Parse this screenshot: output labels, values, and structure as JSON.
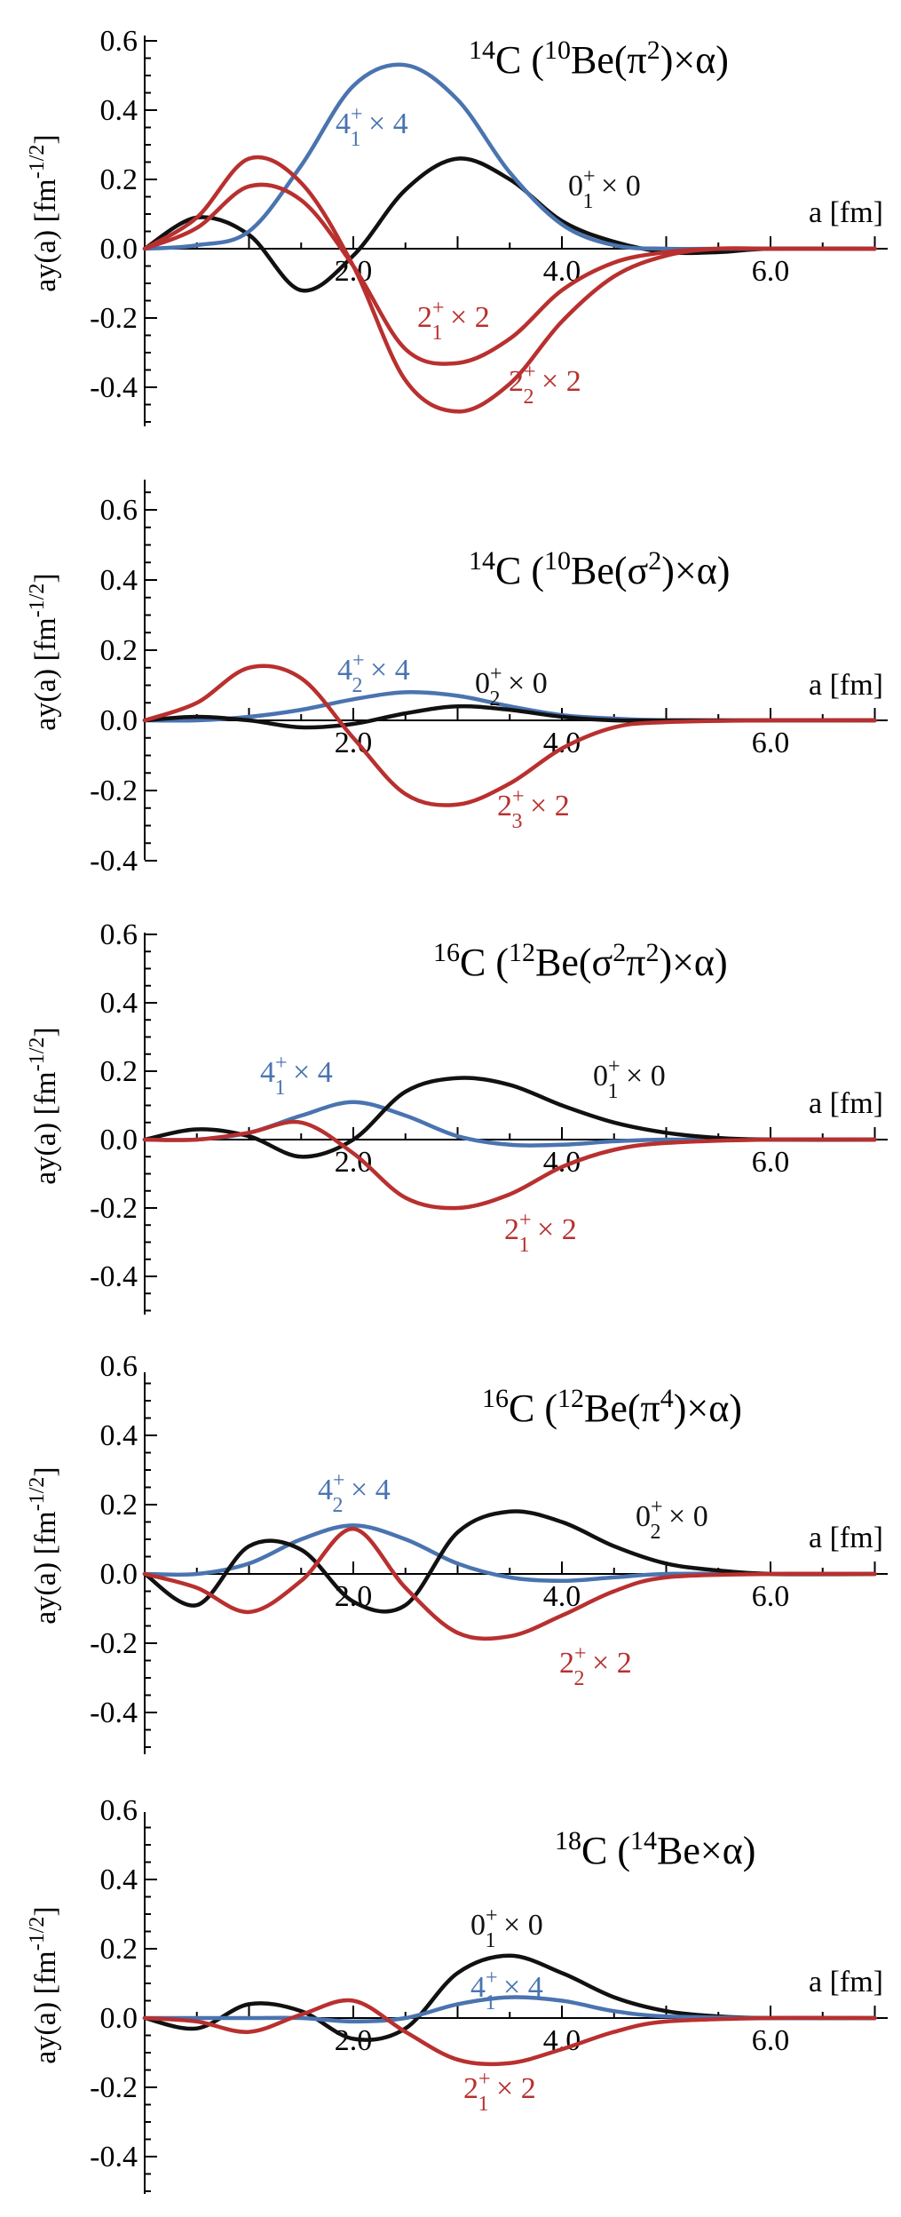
{
  "colors": {
    "black": "#111111",
    "blue": "#4a74b0",
    "red": "#b8302f"
  },
  "chart_data": [
    {
      "type": "line",
      "title": "¹⁴C (¹⁰Be(π²)×α)",
      "title_parts": [
        [
          "",
          "14"
        ],
        [
          "C (",
          ""
        ],
        [
          "",
          "10"
        ],
        [
          "Be(π",
          ""
        ],
        [
          "",
          "2"
        ],
        [
          ")×α)",
          ""
        ]
      ],
      "xlabel": "a [fm]",
      "ylabel": "ay(a) [fm⁻¹ᐟ²]",
      "xlim": [
        0,
        7.0
      ],
      "ylim": [
        -0.5,
        0.6
      ],
      "yticks": [
        "0.6",
        "0.4",
        "0.2",
        "0.0",
        "-0.2",
        "-0.4"
      ],
      "xticks": [
        "2.0",
        "4.0",
        "6.0"
      ],
      "series": [
        {
          "name": "0₁⁺ × 0",
          "color": "black",
          "x": [
            0,
            0.5,
            1.0,
            1.5,
            2.0,
            2.5,
            3.0,
            3.5,
            4.0,
            4.5,
            5.0,
            5.5,
            6.0,
            7.0
          ],
          "y": [
            0.0,
            0.09,
            0.04,
            -0.12,
            -0.02,
            0.17,
            0.26,
            0.2,
            0.08,
            0.02,
            -0.01,
            -0.01,
            0.0,
            0.0
          ]
        },
        {
          "name": "4₁⁺ × 4",
          "color": "blue",
          "x": [
            0,
            0.5,
            1.0,
            1.5,
            2.0,
            2.5,
            3.0,
            3.5,
            4.0,
            4.5,
            5.0,
            5.5,
            6.0,
            7.0
          ],
          "y": [
            0.0,
            0.01,
            0.05,
            0.24,
            0.47,
            0.53,
            0.43,
            0.22,
            0.07,
            0.01,
            0.0,
            0.0,
            0.0,
            0.0
          ]
        },
        {
          "name": "2₁⁺ × 2",
          "color": "red",
          "x": [
            0,
            0.5,
            1.0,
            1.5,
            2.0,
            2.5,
            3.0,
            3.5,
            4.0,
            4.5,
            5.0,
            5.5,
            6.0,
            7.0
          ],
          "y": [
            0.0,
            0.06,
            0.18,
            0.14,
            -0.05,
            -0.29,
            -0.33,
            -0.26,
            -0.12,
            -0.04,
            -0.01,
            0.0,
            0.0,
            0.0
          ]
        },
        {
          "name": "2₂⁺ × 2",
          "color": "red",
          "x": [
            0,
            0.5,
            1.0,
            1.5,
            2.0,
            2.5,
            3.0,
            3.5,
            4.0,
            4.5,
            5.0,
            5.5,
            6.0,
            7.0
          ],
          "y": [
            0.0,
            0.09,
            0.26,
            0.19,
            -0.05,
            -0.38,
            -0.47,
            -0.39,
            -0.21,
            -0.08,
            -0.02,
            0.0,
            0.0,
            0.0
          ]
        }
      ],
      "labels": [
        {
          "base": "4",
          "sub": "1",
          "sup": "+",
          "tail": " × 4",
          "color": "blue"
        },
        {
          "base": "0",
          "sub": "1",
          "sup": "+",
          "tail": " × 0",
          "color": "black"
        },
        {
          "base": "2",
          "sub": "1",
          "sup": "+",
          "tail": " × 2",
          "color": "red"
        },
        {
          "base": "2",
          "sub": "2",
          "sup": "+",
          "tail": " × 2",
          "color": "red"
        }
      ]
    },
    {
      "type": "line",
      "title": "¹⁴C (¹⁰Be(σ²)×α)",
      "title_parts": [
        [
          "",
          "14"
        ],
        [
          "C (",
          ""
        ],
        [
          "",
          "10"
        ],
        [
          "Be(σ",
          ""
        ],
        [
          "",
          "2"
        ],
        [
          ")×α)",
          ""
        ]
      ],
      "xlabel": "a [fm]",
      "ylabel": "ay(a) [fm⁻¹ᐟ²]",
      "xlim": [
        0,
        7.0
      ],
      "ylim": [
        -0.4,
        0.75
      ],
      "yticks": [
        "0.6",
        "0.4",
        "0.2",
        "0.0",
        "-0.2",
        "-0.4"
      ],
      "xticks": [
        "2.0",
        "4.0",
        "6.0"
      ],
      "series": [
        {
          "name": "4₂⁺ × 4",
          "color": "blue",
          "x": [
            0,
            0.5,
            1.0,
            1.5,
            2.0,
            2.5,
            3.0,
            3.5,
            4.0,
            4.5,
            5.0,
            6.0,
            7.0
          ],
          "y": [
            0.0,
            0.0,
            0.01,
            0.03,
            0.06,
            0.08,
            0.07,
            0.04,
            0.015,
            0.005,
            0.0,
            0.0,
            0.0
          ]
        },
        {
          "name": "0₂⁺ × 0",
          "color": "black",
          "x": [
            0,
            0.5,
            1.0,
            1.5,
            2.0,
            2.5,
            3.0,
            3.5,
            4.0,
            4.5,
            5.0,
            6.0,
            7.0
          ],
          "y": [
            0.0,
            0.01,
            0.0,
            -0.02,
            -0.01,
            0.02,
            0.04,
            0.03,
            0.01,
            0.0,
            0.0,
            0.0,
            0.0
          ]
        },
        {
          "name": "2₃⁺ × 2",
          "color": "red",
          "x": [
            0,
            0.5,
            1.0,
            1.5,
            2.0,
            2.5,
            3.0,
            3.5,
            4.0,
            4.5,
            5.0,
            6.0,
            7.0
          ],
          "y": [
            0.0,
            0.05,
            0.15,
            0.12,
            -0.05,
            -0.21,
            -0.24,
            -0.18,
            -0.08,
            -0.02,
            -0.005,
            0.0,
            0.0
          ]
        }
      ],
      "labels": [
        {
          "base": "4",
          "sub": "2",
          "sup": "+",
          "tail": " × 4",
          "color": "blue"
        },
        {
          "base": "0",
          "sub": "2",
          "sup": "+",
          "tail": " × 0",
          "color": "black"
        },
        {
          "base": "2",
          "sub": "3",
          "sup": "+",
          "tail": " × 2",
          "color": "red"
        }
      ]
    },
    {
      "type": "line",
      "title": "¹⁶C (¹²Be(σ²π²)×α)",
      "title_parts": [
        [
          "",
          "16"
        ],
        [
          "C (",
          ""
        ],
        [
          "",
          "12"
        ],
        [
          "Be(σ",
          ""
        ],
        [
          "",
          "2"
        ],
        [
          "π",
          ""
        ],
        [
          "",
          "2"
        ],
        [
          ")×α)",
          ""
        ]
      ],
      "xlabel": "a [fm]",
      "ylabel": "ay(a) [fm⁻¹ᐟ²]",
      "xlim": [
        0,
        7.0
      ],
      "ylim": [
        -0.5,
        0.6
      ],
      "yticks": [
        "0.6",
        "0.4",
        "0.2",
        "0.0",
        "-0.2",
        "-0.4"
      ],
      "xticks": [
        "2.0",
        "4.0",
        "6.0"
      ],
      "series": [
        {
          "name": "4₁⁺ × 4",
          "color": "blue",
          "x": [
            0,
            0.5,
            1.0,
            1.5,
            2.0,
            2.5,
            3.0,
            3.5,
            4.0,
            4.5,
            5.0,
            6.0,
            7.0
          ],
          "y": [
            0.0,
            0.0,
            0.02,
            0.07,
            0.11,
            0.07,
            0.01,
            -0.015,
            -0.015,
            -0.005,
            0.0,
            0.0,
            0.0
          ]
        },
        {
          "name": "0₁⁺ × 0",
          "color": "black",
          "x": [
            0,
            0.5,
            1.0,
            1.5,
            2.0,
            2.5,
            3.0,
            3.5,
            4.0,
            4.5,
            5.0,
            5.5,
            6.0,
            7.0
          ],
          "y": [
            0.0,
            0.03,
            0.01,
            -0.05,
            0.0,
            0.14,
            0.18,
            0.16,
            0.1,
            0.05,
            0.02,
            0.005,
            0.0,
            0.0
          ]
        },
        {
          "name": "2₁⁺ × 2",
          "color": "red",
          "x": [
            0,
            0.5,
            1.0,
            1.5,
            2.0,
            2.5,
            3.0,
            3.5,
            4.0,
            4.5,
            5.0,
            6.0,
            7.0
          ],
          "y": [
            0.0,
            0.0,
            0.02,
            0.05,
            -0.04,
            -0.17,
            -0.2,
            -0.16,
            -0.08,
            -0.03,
            -0.01,
            0.0,
            0.0
          ]
        }
      ],
      "labels": [
        {
          "base": "4",
          "sub": "1",
          "sup": "+",
          "tail": " × 4",
          "color": "blue"
        },
        {
          "base": "0",
          "sub": "1",
          "sup": "+",
          "tail": " × 0",
          "color": "black"
        },
        {
          "base": "2",
          "sub": "1",
          "sup": "+",
          "tail": " × 2",
          "color": "red"
        }
      ]
    },
    {
      "type": "line",
      "title": "¹⁶C (¹²Be(π⁴)×α)",
      "title_parts": [
        [
          "",
          "16"
        ],
        [
          "C (",
          ""
        ],
        [
          "",
          "12"
        ],
        [
          "Be(π",
          ""
        ],
        [
          "",
          "4"
        ],
        [
          ")×α)",
          ""
        ]
      ],
      "xlabel": "a [fm]",
      "ylabel": "ay(a) [fm⁻¹ᐟ²]",
      "xlim": [
        0,
        7.0
      ],
      "ylim": [
        -0.5,
        0.6
      ],
      "yticks": [
        "0.6",
        "0.4",
        "0.2",
        "0.0",
        "-0.2",
        "-0.4"
      ],
      "xticks": [
        "2.0",
        "4.0",
        "6.0"
      ],
      "series": [
        {
          "name": "4₂⁺ × 4",
          "color": "blue",
          "x": [
            0,
            0.5,
            1.0,
            1.5,
            2.0,
            2.5,
            3.0,
            3.5,
            4.0,
            4.5,
            5.0,
            6.0,
            7.0
          ],
          "y": [
            0.0,
            0.0,
            0.03,
            0.1,
            0.14,
            0.1,
            0.03,
            -0.01,
            -0.02,
            -0.01,
            0.0,
            0.0,
            0.0
          ]
        },
        {
          "name": "0₂⁺ × 0",
          "color": "black",
          "x": [
            0,
            0.5,
            1.0,
            1.5,
            2.0,
            2.5,
            3.0,
            3.5,
            4.0,
            4.5,
            5.0,
            5.5,
            6.0,
            7.0
          ],
          "y": [
            0.0,
            -0.09,
            0.08,
            0.07,
            -0.08,
            -0.09,
            0.12,
            0.18,
            0.15,
            0.08,
            0.03,
            0.01,
            0.0,
            0.0
          ]
        },
        {
          "name": "2₂⁺ × 2",
          "color": "red",
          "x": [
            0,
            0.5,
            1.0,
            1.5,
            2.0,
            2.5,
            3.0,
            3.5,
            4.0,
            4.5,
            5.0,
            6.0,
            7.0
          ],
          "y": [
            0.0,
            -0.04,
            -0.11,
            -0.02,
            0.13,
            -0.04,
            -0.17,
            -0.18,
            -0.12,
            -0.05,
            -0.01,
            0.0,
            0.0
          ]
        }
      ],
      "labels": [
        {
          "base": "4",
          "sub": "2",
          "sup": "+",
          "tail": " × 4",
          "color": "blue"
        },
        {
          "base": "0",
          "sub": "2",
          "sup": "+",
          "tail": " × 0",
          "color": "black"
        },
        {
          "base": "2",
          "sub": "2",
          "sup": "+",
          "tail": " × 2",
          "color": "red"
        }
      ]
    },
    {
      "type": "line",
      "title": "¹⁸C (¹⁴Be×α)",
      "title_parts": [
        [
          "",
          "18"
        ],
        [
          "C (",
          ""
        ],
        [
          "",
          "14"
        ],
        [
          "Be×α)",
          ""
        ]
      ],
      "xlabel": "a [fm]",
      "ylabel": "ay(a) [fm⁻¹ᐟ²]",
      "xlim": [
        0,
        7.0
      ],
      "ylim": [
        -0.5,
        0.6
      ],
      "yticks": [
        "0.6",
        "0.4",
        "0.2",
        "0.0",
        "-0.2",
        "-0.4"
      ],
      "xticks": [
        "2.0",
        "4.0",
        "6.0"
      ],
      "series": [
        {
          "name": "0₁⁺ × 0",
          "color": "black",
          "x": [
            0,
            0.5,
            1.0,
            1.5,
            2.0,
            2.5,
            3.0,
            3.5,
            4.0,
            4.5,
            5.0,
            5.5,
            6.0,
            7.0
          ],
          "y": [
            0.0,
            -0.03,
            0.04,
            0.02,
            -0.06,
            -0.03,
            0.13,
            0.18,
            0.13,
            0.06,
            0.02,
            0.005,
            0.0,
            0.0
          ]
        },
        {
          "name": "4₁⁺ × 4",
          "color": "blue",
          "x": [
            0,
            0.5,
            1.0,
            1.5,
            2.0,
            2.5,
            3.0,
            3.5,
            4.0,
            4.5,
            5.0,
            6.0,
            7.0
          ],
          "y": [
            0.0,
            0.0,
            0.0,
            0.0,
            -0.01,
            0.0,
            0.04,
            0.06,
            0.05,
            0.02,
            0.005,
            0.0,
            0.0
          ]
        },
        {
          "name": "2₁⁺ × 2",
          "color": "red",
          "x": [
            0,
            0.5,
            1.0,
            1.5,
            2.0,
            2.5,
            3.0,
            3.5,
            4.0,
            4.5,
            5.0,
            6.0,
            7.0
          ],
          "y": [
            0.0,
            -0.01,
            -0.04,
            0.01,
            0.05,
            -0.04,
            -0.12,
            -0.13,
            -0.09,
            -0.04,
            -0.01,
            0.0,
            0.0
          ]
        }
      ],
      "labels": [
        {
          "base": "0",
          "sub": "1",
          "sup": "+",
          "tail": " × 0",
          "color": "black"
        },
        {
          "base": "4",
          "sub": "1",
          "sup": "+",
          "tail": " × 4",
          "color": "blue"
        },
        {
          "base": "2",
          "sub": "1",
          "sup": "+",
          "tail": " × 2",
          "color": "red"
        }
      ]
    }
  ]
}
